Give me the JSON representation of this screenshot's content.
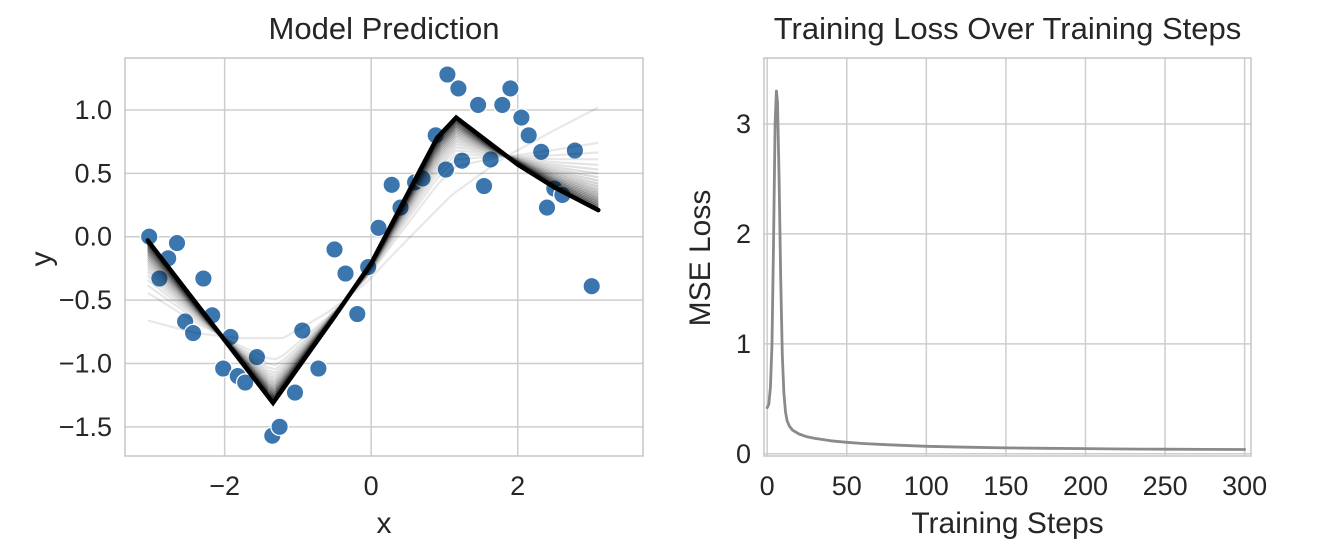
{
  "figure": {
    "background": "#ffffff",
    "text_color": "#262626",
    "grid_color": "#cdcdcd",
    "spine_color": "#c6c6c6",
    "tick_font_px": 27
  },
  "chart_data": [
    {
      "type": "scatter",
      "title": "Model Prediction",
      "xlabel": "x",
      "ylabel": "y",
      "xlim": [
        -3.36,
        3.71
      ],
      "ylim": [
        -1.73,
        1.41
      ],
      "grid": true,
      "xticks": {
        "values": [
          -2,
          0,
          2
        ],
        "labels": [
          "−2",
          "0",
          "2"
        ]
      },
      "yticks": {
        "values": [
          1.0,
          0.5,
          0.0,
          -0.5,
          -1.0,
          -1.5
        ],
        "labels": [
          "1.0",
          "0.5",
          "0.0",
          "−0.5",
          "−1.0",
          "−1.5"
        ]
      },
      "scatter": {
        "name": "noisy training data points",
        "color": "#3b76af",
        "edge_color": "#ffffff",
        "marker_radius": 8.7,
        "points": [
          [
            -3.03,
            0.0
          ],
          [
            -2.89,
            -0.33
          ],
          [
            -2.77,
            -0.17
          ],
          [
            -2.65,
            -0.05
          ],
          [
            -2.54,
            -0.67
          ],
          [
            -2.43,
            -0.76
          ],
          [
            -2.29,
            -0.33
          ],
          [
            -2.17,
            -0.62
          ],
          [
            -2.02,
            -1.04
          ],
          [
            -1.92,
            -0.79
          ],
          [
            -1.82,
            -1.1
          ],
          [
            -1.72,
            -1.15
          ],
          [
            -1.56,
            -0.95
          ],
          [
            -1.35,
            -1.57
          ],
          [
            -1.25,
            -1.5
          ],
          [
            -1.04,
            -1.23
          ],
          [
            -0.94,
            -0.74
          ],
          [
            -0.72,
            -1.04
          ],
          [
            -0.5,
            -0.1
          ],
          [
            -0.35,
            -0.29
          ],
          [
            -0.19,
            -0.61
          ],
          [
            -0.04,
            -0.24
          ],
          [
            0.1,
            0.07
          ],
          [
            0.28,
            0.41
          ],
          [
            0.4,
            0.23
          ],
          [
            0.6,
            0.43
          ],
          [
            0.7,
            0.46
          ],
          [
            0.88,
            0.8
          ],
          [
            1.02,
            0.53
          ],
          [
            1.04,
            1.28
          ],
          [
            1.19,
            1.17
          ],
          [
            1.24,
            0.6
          ],
          [
            1.46,
            1.04
          ],
          [
            1.54,
            0.4
          ],
          [
            1.63,
            0.61
          ],
          [
            1.79,
            1.04
          ],
          [
            1.9,
            1.17
          ],
          [
            2.05,
            0.94
          ],
          [
            2.15,
            0.8
          ],
          [
            2.32,
            0.67
          ],
          [
            2.4,
            0.23
          ],
          [
            2.5,
            0.38
          ],
          [
            2.61,
            0.33
          ],
          [
            2.78,
            0.68
          ],
          [
            3.01,
            -0.39
          ]
        ]
      },
      "prediction_line": {
        "name": "final model prediction",
        "color": "#000000",
        "width": 4.5,
        "points": [
          [
            -3.05,
            -0.03
          ],
          [
            -1.34,
            -1.31
          ],
          [
            -0.5,
            -0.63
          ],
          [
            0.0,
            -0.21
          ],
          [
            0.5,
            0.34
          ],
          [
            0.9,
            0.78
          ],
          [
            1.16,
            0.94
          ],
          [
            2.0,
            0.57
          ],
          [
            2.5,
            0.39
          ],
          [
            3.1,
            0.21
          ]
        ]
      },
      "history_lines": {
        "name": "intermediate predictions during training (light to dark)",
        "count": 22,
        "color": "#000000",
        "width": 2.2,
        "min_opacity": 0.09,
        "max_opacity": 0.55,
        "initial_points": [
          [
            -3.05,
            -0.66
          ],
          [
            -2.4,
            -0.76
          ],
          [
            -1.8,
            -0.8
          ],
          [
            -1.2,
            -0.8
          ],
          [
            -0.6,
            -0.6
          ],
          [
            -0.1,
            -0.38
          ],
          [
            0.5,
            -0.02
          ],
          [
            1.1,
            0.33
          ],
          [
            1.8,
            0.62
          ],
          [
            2.5,
            0.84
          ],
          [
            3.1,
            1.02
          ]
        ]
      }
    },
    {
      "type": "line",
      "title": "Training Loss Over Training Steps",
      "xlabel": "Training Steps",
      "ylabel": "MSE Loss",
      "xlim": [
        -2,
        304
      ],
      "ylim": [
        -0.02,
        3.6
      ],
      "grid": true,
      "xticks": {
        "values": [
          0,
          50,
          100,
          150,
          200,
          250,
          300
        ],
        "labels": [
          "0",
          "50",
          "100",
          "150",
          "200",
          "250",
          "300"
        ]
      },
      "yticks": {
        "values": [
          0,
          1,
          2,
          3
        ],
        "labels": [
          "0",
          "1",
          "2",
          "3"
        ]
      },
      "series": [
        {
          "name": "MSE loss",
          "color": "#8a8a8a",
          "width": 2.8,
          "x": [
            0,
            1,
            2,
            3,
            4,
            5,
            5.8,
            6.5,
            7.5,
            8.5,
            9.5,
            10.5,
            11.5,
            12.5,
            14,
            16,
            20,
            25,
            30,
            40,
            50,
            60,
            75,
            100,
            125,
            150,
            175,
            200,
            225,
            250,
            275,
            300
          ],
          "y": [
            0.42,
            0.45,
            0.6,
            1.0,
            1.9,
            3.0,
            3.3,
            3.2,
            2.5,
            1.6,
            0.9,
            0.55,
            0.38,
            0.3,
            0.25,
            0.215,
            0.18,
            0.155,
            0.14,
            0.118,
            0.105,
            0.094,
            0.083,
            0.068,
            0.06,
            0.054,
            0.05,
            0.047,
            0.044,
            0.042,
            0.04,
            0.039
          ]
        }
      ]
    }
  ]
}
